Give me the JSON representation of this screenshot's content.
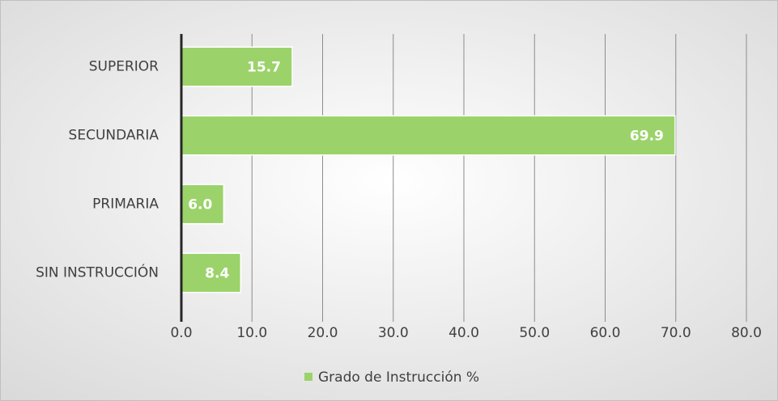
{
  "chart_data": {
    "type": "bar",
    "orientation": "horizontal",
    "categories": [
      "SUPERIOR",
      "SECUNDARIA",
      "PRIMARIA",
      "SIN INSTRUCCIÓN"
    ],
    "series": [
      {
        "name": "Grado de Instrucción %",
        "color": "#9bd36a",
        "values": [
          15.7,
          69.9,
          6.0,
          8.4
        ],
        "value_labels": [
          "15.7",
          "69.9",
          "6.0",
          "8.4"
        ]
      }
    ],
    "xlim": [
      0,
      80
    ],
    "xticks": [
      {
        "value": 0,
        "label": "0.0"
      },
      {
        "value": 10,
        "label": "10.0"
      },
      {
        "value": 20,
        "label": "20.0"
      },
      {
        "value": 30,
        "label": "30.0"
      },
      {
        "value": 40,
        "label": "40.0"
      },
      {
        "value": 50,
        "label": "50.0"
      },
      {
        "value": 60,
        "label": "60.0"
      },
      {
        "value": 70,
        "label": "70.0"
      },
      {
        "value": 80,
        "label": "80.0"
      }
    ],
    "grid": true,
    "legend": "bottom"
  }
}
